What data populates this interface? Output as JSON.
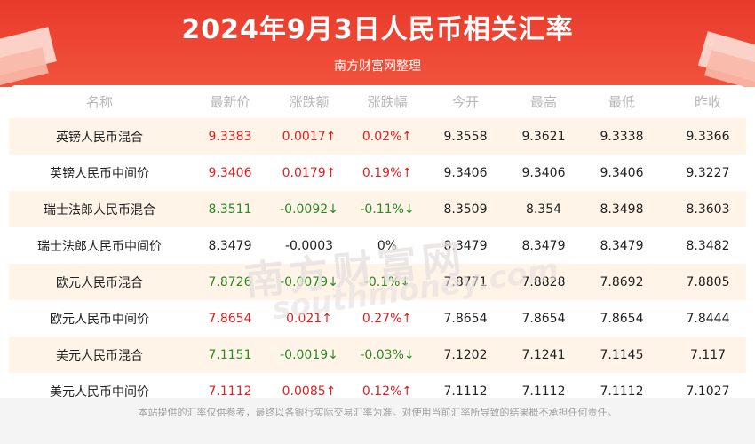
{
  "header": {
    "title": "2024年9月3日人民币相关汇率",
    "subtitle": "南方财富网整理"
  },
  "columns": [
    "名称",
    "最新价",
    "涨跌额",
    "涨跌幅",
    "今开",
    "最高",
    "最低",
    "昨收"
  ],
  "rows": [
    {
      "name": "英镑人民币混合",
      "latest": "9.3383",
      "change": "0.0017↑",
      "pct": "0.02%↑",
      "open": "9.3558",
      "high": "9.3621",
      "low": "9.3338",
      "prev": "9.3366",
      "dir": "up"
    },
    {
      "name": "英镑人民币中间价",
      "latest": "9.3406",
      "change": "0.0179↑",
      "pct": "0.19%↑",
      "open": "9.3406",
      "high": "9.3406",
      "low": "9.3406",
      "prev": "9.3227",
      "dir": "up"
    },
    {
      "name": "瑞士法郎人民币混合",
      "latest": "8.3511",
      "change": "-0.0092↓",
      "pct": "-0.11%↓",
      "open": "8.3509",
      "high": "8.354",
      "low": "8.3498",
      "prev": "8.3603",
      "dir": "down"
    },
    {
      "name": "瑞士法郎人民币中间价",
      "latest": "8.3479",
      "change": "-0.0003",
      "pct": "0%",
      "open": "8.3479",
      "high": "8.3479",
      "low": "8.3479",
      "prev": "8.3482",
      "dir": "flat"
    },
    {
      "name": "欧元人民币混合",
      "latest": "7.8726",
      "change": "-0.0079↓",
      "pct": "-0.1%↓",
      "open": "7.8771",
      "high": "7.8828",
      "low": "7.8692",
      "prev": "7.8805",
      "dir": "down"
    },
    {
      "name": "欧元人民币中间价",
      "latest": "7.8654",
      "change": "0.021↑",
      "pct": "0.27%↑",
      "open": "7.8654",
      "high": "7.8654",
      "low": "7.8654",
      "prev": "7.8444",
      "dir": "up"
    },
    {
      "name": "美元人民币混合",
      "latest": "7.1151",
      "change": "-0.0019↓",
      "pct": "-0.03%↓",
      "open": "7.1202",
      "high": "7.1241",
      "low": "7.1145",
      "prev": "7.117",
      "dir": "down"
    },
    {
      "name": "美元人民币中间价",
      "latest": "7.1112",
      "change": "0.0085↑",
      "pct": "0.12%↑",
      "open": "7.1112",
      "high": "7.1112",
      "low": "7.1112",
      "prev": "7.1027",
      "dir": "up"
    }
  ],
  "watermark": {
    "cn": "南方财富网",
    "en": "southmoney.com"
  },
  "footer": {
    "note": "本站提供的汇率仅供参考，最终以各银行实际交易汇率为准。对使用当前汇率所导致的结果概不承担任何责任。"
  },
  "colors": {
    "header": "#e83a2c",
    "up": "#e02020",
    "down": "#2a8a25",
    "stripe": "#fff4e7"
  }
}
